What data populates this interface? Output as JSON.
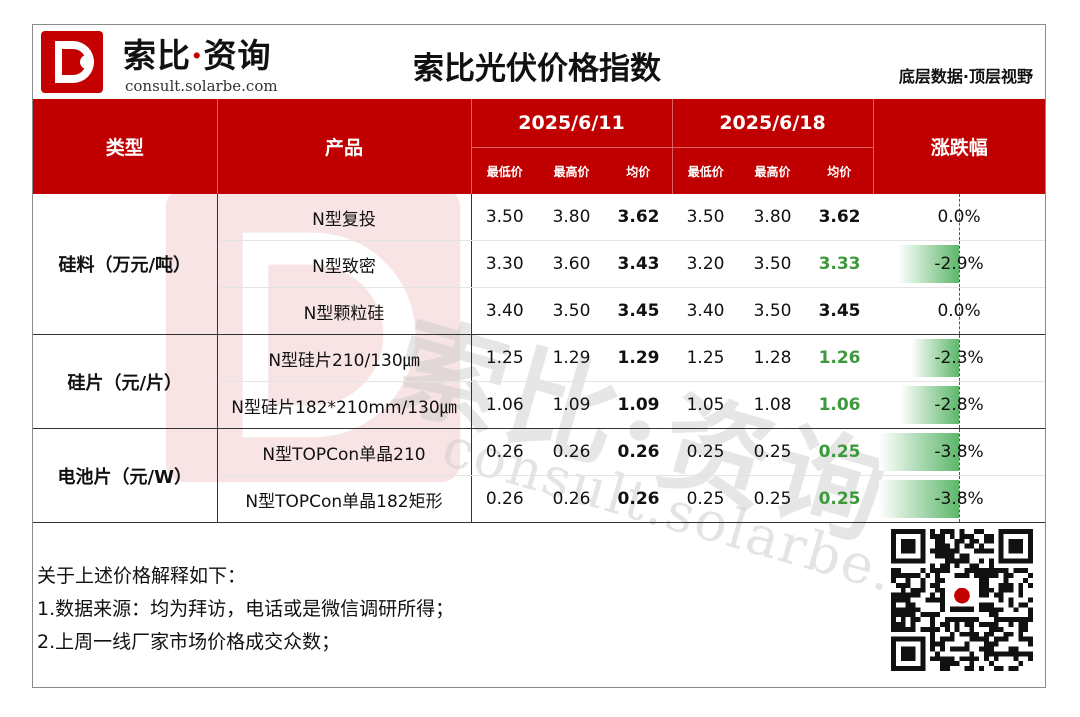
{
  "header": {
    "brand": "索比·资询",
    "brand_main": "索比",
    "brand_dot": "·",
    "brand_tail": "资询",
    "brand_url": "consult.solarbe.com",
    "title": "索比光伏价格指数",
    "slogan": "底层数据·顶层视野"
  },
  "watermark": {
    "text": "索比·资询",
    "url": "consult.solarbe.com"
  },
  "table": {
    "col_type": "类型",
    "col_product": "产品",
    "col_change": "涨跌幅",
    "dates": [
      "2025/6/11",
      "2025/6/18"
    ],
    "sub_headers": [
      "最低价",
      "最高价",
      "均价",
      "最低价",
      "最高价",
      "均价"
    ],
    "groups": [
      {
        "category": "硅料（万元/吨）",
        "rows": [
          {
            "product": "N型复投",
            "d1": [
              "3.50",
              "3.80",
              "3.62"
            ],
            "d2": [
              "3.50",
              "3.80",
              "3.62"
            ],
            "change": "0.0%",
            "change_value": 0.0
          },
          {
            "product": "N型致密",
            "d1": [
              "3.30",
              "3.60",
              "3.43"
            ],
            "d2": [
              "3.20",
              "3.50",
              "3.33"
            ],
            "change": "-2.9%",
            "change_value": -2.9
          },
          {
            "product": "N型颗粒硅",
            "d1": [
              "3.40",
              "3.50",
              "3.45"
            ],
            "d2": [
              "3.40",
              "3.50",
              "3.45"
            ],
            "change": "0.0%",
            "change_value": 0.0
          }
        ]
      },
      {
        "category": "硅片（元/片）",
        "rows": [
          {
            "product": "N型硅片210/130㎛",
            "d1": [
              "1.25",
              "1.29",
              "1.29"
            ],
            "d2": [
              "1.25",
              "1.28",
              "1.26"
            ],
            "change": "-2.3%",
            "change_value": -2.3
          },
          {
            "product": "N型硅片182*210mm/130㎛",
            "d1": [
              "1.06",
              "1.09",
              "1.09"
            ],
            "d2": [
              "1.05",
              "1.08",
              "1.06"
            ],
            "change": "-2.8%",
            "change_value": -2.8
          }
        ]
      },
      {
        "category": "电池片（元/W）",
        "rows": [
          {
            "product": "N型TOPCon单晶210",
            "d1": [
              "0.26",
              "0.26",
              "0.26"
            ],
            "d2": [
              "0.25",
              "0.25",
              "0.25"
            ],
            "change": "-3.8%",
            "change_value": -3.8
          },
          {
            "product": "N型TOPCon单晶182矩形",
            "d1": [
              "0.26",
              "0.26",
              "0.26"
            ],
            "d2": [
              "0.25",
              "0.25",
              "0.25"
            ],
            "change": "-3.8%",
            "change_value": -3.8
          }
        ]
      }
    ]
  },
  "notes": {
    "intro": "关于上述价格解释如下：",
    "items": [
      "1.数据来源：均为拜访，电话或是微信调研所得；",
      "2.上周一线厂家市场价格成交众数；"
    ]
  },
  "colors": {
    "header_red": "#c00000",
    "up_green": "#3c9a3c",
    "bar_green": "#5db76a"
  },
  "icons": {
    "logo": "solarbe-logo-icon",
    "qr": "qr-code-icon"
  }
}
